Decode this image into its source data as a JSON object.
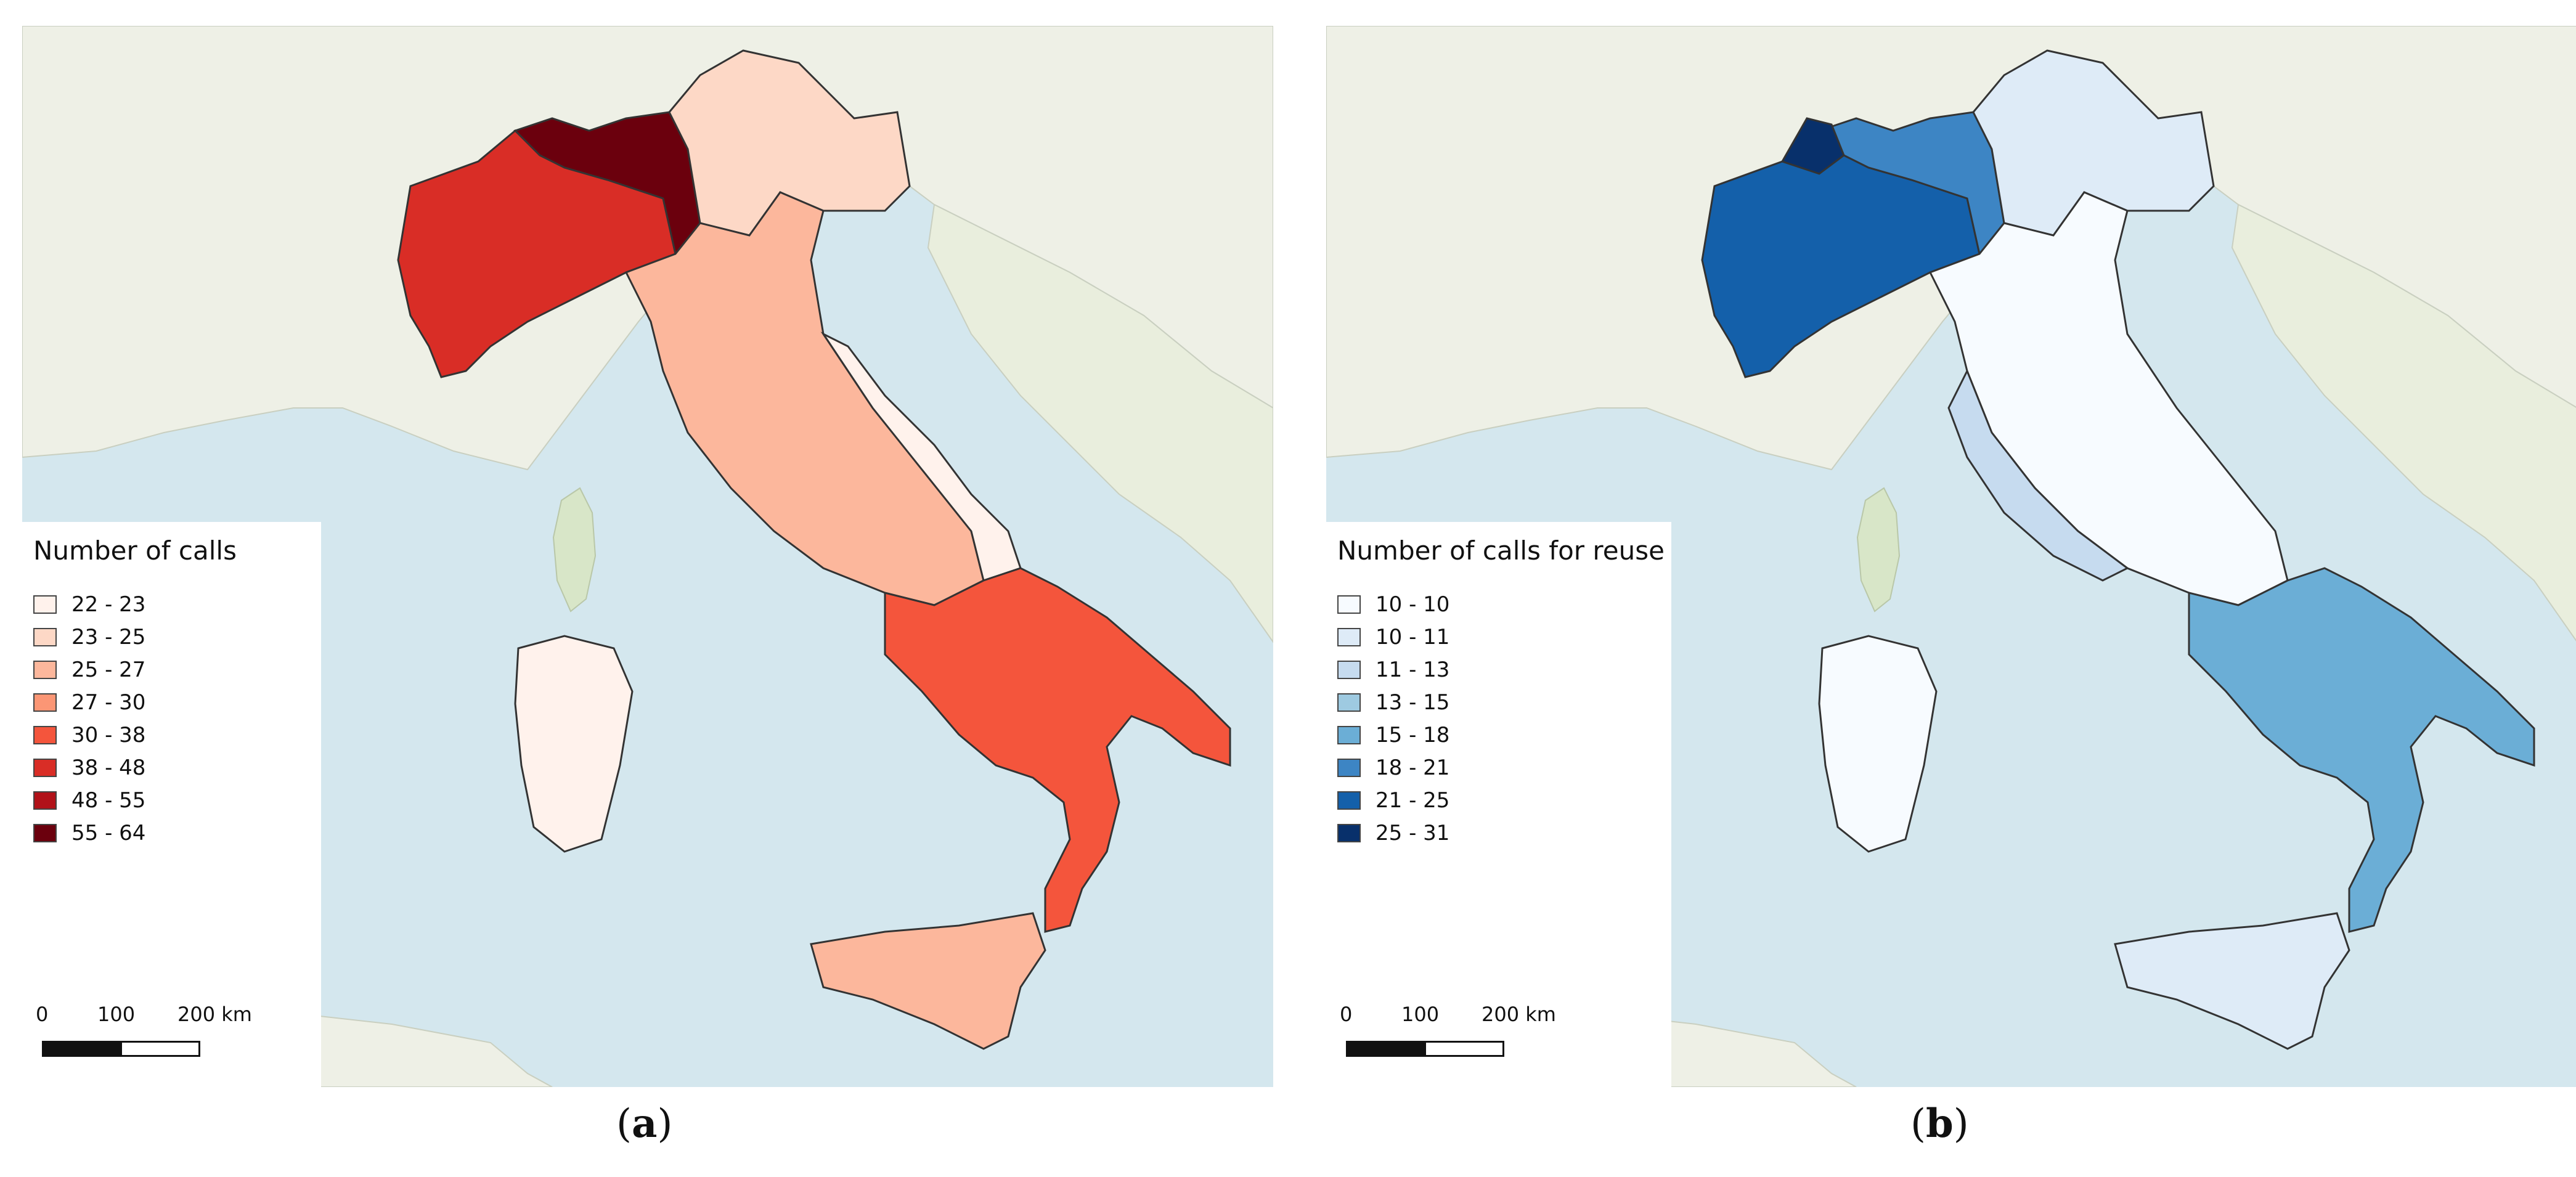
{
  "panels": {
    "a": {
      "caption_open": "(",
      "caption_letter": "a",
      "caption_close": ")",
      "legend": {
        "title": "Number of calls",
        "items": [
          {
            "label": "22 - 23",
            "color": "#fff2ec"
          },
          {
            "label": "23 - 25",
            "color": "#fdd8c6"
          },
          {
            "label": "25 - 27",
            "color": "#fcb79c"
          },
          {
            "label": "27 - 30",
            "color": "#fb9675"
          },
          {
            "label": "30 - 38",
            "color": "#f4553c"
          },
          {
            "label": "38 - 48",
            "color": "#d92d26"
          },
          {
            "label": "48 - 55",
            "color": "#b11219"
          },
          {
            "label": "55 - 64",
            "color": "#6b000d"
          }
        ]
      },
      "scale": {
        "tick0": "0",
        "tick1": "100",
        "tick2": "200 km"
      }
    },
    "b": {
      "caption_open": "(",
      "caption_letter": "b",
      "caption_close": ")",
      "legend": {
        "title": "Number of calls for reuse",
        "items": [
          {
            "label": "10 - 10",
            "color": "#f7fbff"
          },
          {
            "label": "10 - 11",
            "color": "#deebf7"
          },
          {
            "label": "11 - 13",
            "color": "#c6dbef"
          },
          {
            "label": "13 - 15",
            "color": "#9ecae1"
          },
          {
            "label": "15 - 18",
            "color": "#6baed6"
          },
          {
            "label": "18 - 21",
            "color": "#3d85c4"
          },
          {
            "label": "21 - 25",
            "color": "#1460aa"
          },
          {
            "label": "25 - 31",
            "color": "#08306b"
          }
        ]
      },
      "scale": {
        "tick0": "0",
        "tick1": "100",
        "tick2": "200 km"
      }
    }
  },
  "colors": {
    "sea": "#d4e7ee",
    "land": "#eef0e6",
    "land_green": "#d8e6c8",
    "border": "#333333"
  }
}
